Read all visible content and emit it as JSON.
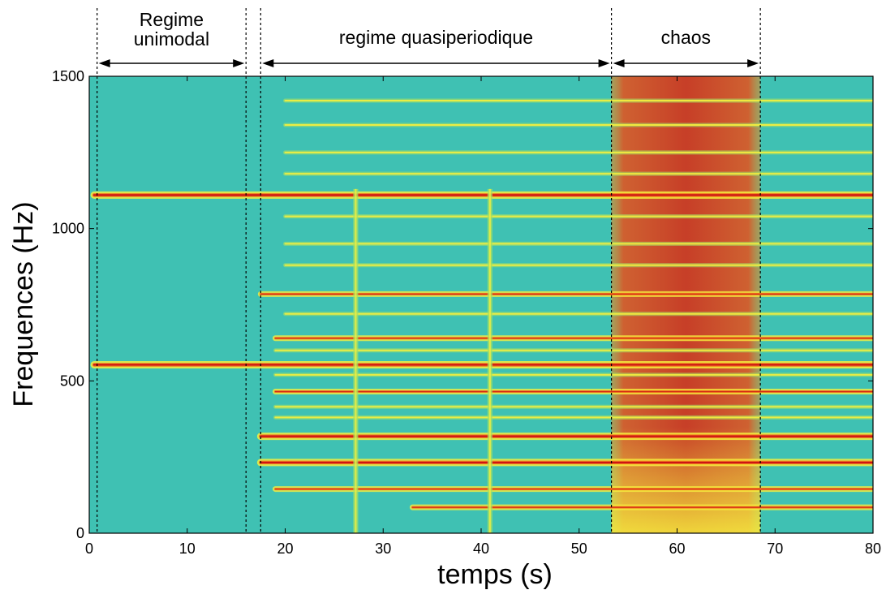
{
  "chart_data": {
    "type": "heatmap",
    "xlabel": "temps (s)",
    "ylabel": "Frequences (Hz)",
    "xlim": [
      0,
      80
    ],
    "ylim": [
      0,
      1500
    ],
    "xticks": [
      0,
      10,
      20,
      30,
      40,
      50,
      60,
      70,
      80
    ],
    "yticks": [
      0,
      500,
      1000,
      1500
    ],
    "colormap": "jet",
    "colors": {
      "background": "#3fc1b3",
      "weak": "#a6e163",
      "medium": "#f6ef3e",
      "strong": "#f2731c",
      "peak": "#cc1414"
    },
    "regions": [
      {
        "label": "Regime unimodal",
        "start": 0.8,
        "end": 16.0
      },
      {
        "label": "regime quasiperiodique",
        "start": 17.5,
        "end": 53.3
      },
      {
        "label": "chaos",
        "start": 53.3,
        "end": 68.5
      }
    ],
    "boundaries": [
      0.8,
      16.0,
      17.5,
      53.3,
      68.5
    ],
    "harmonics": [
      {
        "freq": 1110,
        "start": 0.5,
        "end": 80,
        "level": 3
      },
      {
        "freq": 553,
        "start": 0.5,
        "end": 80,
        "level": 3
      },
      {
        "freq": 318,
        "start": 17.5,
        "end": 80,
        "level": 3
      },
      {
        "freq": 232,
        "start": 17.5,
        "end": 80,
        "level": 3
      },
      {
        "freq": 640,
        "start": 19,
        "end": 80,
        "level": 2
      },
      {
        "freq": 785,
        "start": 17.5,
        "end": 80,
        "level": 2
      },
      {
        "freq": 465,
        "start": 19,
        "end": 80,
        "level": 2
      },
      {
        "freq": 145,
        "start": 19,
        "end": 80,
        "level": 2
      },
      {
        "freq": 85,
        "start": 33,
        "end": 80,
        "level": 2
      },
      {
        "freq": 380,
        "start": 19,
        "end": 80,
        "level": 1
      },
      {
        "freq": 415,
        "start": 19,
        "end": 80,
        "level": 1
      },
      {
        "freq": 520,
        "start": 19,
        "end": 80,
        "level": 1
      },
      {
        "freq": 600,
        "start": 19,
        "end": 80,
        "level": 1
      },
      {
        "freq": 720,
        "start": 20,
        "end": 80,
        "level": 1
      },
      {
        "freq": 880,
        "start": 20,
        "end": 80,
        "level": 1
      },
      {
        "freq": 950,
        "start": 20,
        "end": 80,
        "level": 1
      },
      {
        "freq": 1040,
        "start": 20,
        "end": 80,
        "level": 1
      },
      {
        "freq": 1180,
        "start": 20,
        "end": 80,
        "level": 1
      },
      {
        "freq": 1250,
        "start": 20,
        "end": 80,
        "level": 1
      },
      {
        "freq": 1340,
        "start": 20,
        "end": 80,
        "level": 1
      },
      {
        "freq": 1420,
        "start": 20,
        "end": 80,
        "level": 1
      }
    ],
    "vertical_bursts": [
      27.2,
      40.9
    ],
    "chaos_band": {
      "start": 53.3,
      "end": 68.5,
      "level": 3
    }
  }
}
